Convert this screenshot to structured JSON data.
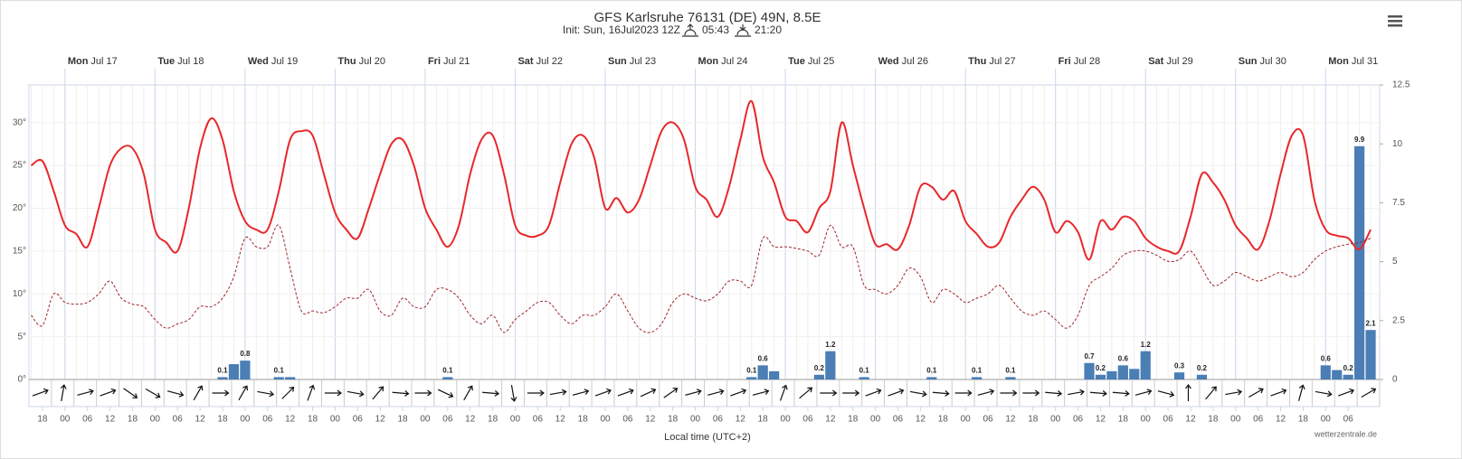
{
  "chart_data": {
    "type": "line",
    "title": "GFS Karlsruhe 76131 (DE) 49N, 8.5E",
    "subtitle": "Init: Sun, 16Jul2023 12Z",
    "sunrise": "05:43",
    "sunset": "21:20",
    "x_label": "Local time (UTC+2)",
    "credit": "wetterzentrale.de",
    "days": [
      {
        "weekday": "Mon",
        "date": "Jul 17"
      },
      {
        "weekday": "Tue",
        "date": "Jul 18"
      },
      {
        "weekday": "Wed",
        "date": "Jul 19"
      },
      {
        "weekday": "Thu",
        "date": "Jul 20"
      },
      {
        "weekday": "Fri",
        "date": "Jul 21"
      },
      {
        "weekday": "Sat",
        "date": "Jul 22"
      },
      {
        "weekday": "Sun",
        "date": "Jul 23"
      },
      {
        "weekday": "Mon",
        "date": "Jul 24"
      },
      {
        "weekday": "Tue",
        "date": "Jul 25"
      },
      {
        "weekday": "Wed",
        "date": "Jul 26"
      },
      {
        "weekday": "Thu",
        "date": "Jul 27"
      },
      {
        "weekday": "Fri",
        "date": "Jul 28"
      },
      {
        "weekday": "Sat",
        "date": "Jul 29"
      },
      {
        "weekday": "Sun",
        "date": "Jul 30"
      },
      {
        "weekday": "Mon",
        "date": "Jul 31"
      }
    ],
    "categories": [
      null,
      "18",
      null,
      "00",
      null,
      "06",
      null,
      "12",
      null,
      "18",
      null,
      "00",
      null,
      "06",
      null,
      "12",
      null,
      "18",
      null,
      "00",
      null,
      "06",
      null,
      "12",
      null,
      "18",
      null,
      "00",
      null,
      "06",
      null,
      "12",
      null,
      "18",
      null,
      "00",
      null,
      "06",
      null,
      "12",
      null,
      "18",
      null,
      "00",
      null,
      "06",
      null,
      "12",
      null,
      "18",
      null,
      "00",
      null,
      "06",
      null,
      "12",
      null,
      "18",
      null,
      "00",
      null,
      "06",
      null,
      "12",
      null,
      "18",
      null,
      "00",
      null,
      "06",
      null,
      "12",
      null,
      "18",
      null,
      "00",
      null,
      "06",
      null,
      "12",
      null,
      "18",
      null,
      "00",
      null,
      "06",
      null,
      "12",
      null,
      "18",
      null,
      "00",
      null,
      "06",
      null,
      "12",
      null,
      "18",
      null,
      "00",
      null,
      "06",
      null,
      "12",
      null,
      "18",
      null,
      "00",
      null,
      "06",
      null,
      "12",
      null,
      "18",
      null,
      "00",
      null,
      "06",
      null,
      null
    ],
    "ylim": [
      0,
      34.4
    ],
    "yticks": [
      {
        "value": 0,
        "label": "0°"
      },
      {
        "value": 5,
        "label": "5°"
      },
      {
        "value": 10,
        "label": "10°"
      },
      {
        "value": 15,
        "label": "15°"
      },
      {
        "value": 20,
        "label": "20°"
      },
      {
        "value": 25,
        "label": "25°"
      },
      {
        "value": 30,
        "label": "30°"
      }
    ],
    "y2lim": [
      0,
      12.5
    ],
    "y2ticks": [
      0,
      2.5,
      5,
      7.5,
      10,
      12.5
    ],
    "grid": true,
    "series": [
      {
        "type": "line",
        "color": "#e8282b",
        "values": [
          25,
          25.5,
          22,
          18,
          17,
          15.5,
          20,
          25,
          27,
          27,
          24,
          17.5,
          16,
          15,
          20,
          27,
          30.5,
          28,
          22,
          18.5,
          17.5,
          17.5,
          22,
          28,
          29,
          28.5,
          24,
          19.5,
          17.5,
          16.5,
          20,
          24,
          27.5,
          28,
          25,
          20,
          17.5,
          15.5,
          18,
          24,
          28,
          28.5,
          24,
          18,
          16.8,
          16.8,
          18,
          23,
          27.5,
          28.5,
          26,
          20,
          21.2,
          19.5,
          21,
          25,
          29,
          30,
          28,
          22.5,
          21,
          19,
          22.5,
          28,
          32.5,
          26,
          23,
          19,
          18.5,
          17.2,
          20,
          22,
          30,
          25,
          20,
          15.8,
          15.8,
          15.2,
          18,
          22.5,
          22.5,
          21,
          22,
          18.5,
          17,
          15.5,
          16,
          19,
          21,
          22.5,
          21,
          17.2,
          18.5,
          17.2,
          14,
          18.5,
          17.5,
          19,
          18.5,
          16.5,
          15.5,
          15,
          15,
          19,
          24,
          23,
          21,
          18,
          16.5,
          15.2,
          18.5,
          24,
          28.5,
          28.5,
          21,
          17.5,
          16.8,
          16.5,
          15.2,
          17.5
        ]
      },
      {
        "type": "line",
        "color": "#a0262a",
        "dashed": true,
        "values": [
          7.5,
          6.3,
          10,
          9,
          8.8,
          9,
          10,
          11.5,
          9.5,
          8.8,
          8.5,
          7,
          6,
          6.5,
          7,
          8.5,
          8.5,
          9.5,
          12,
          16.5,
          15.5,
          15.5,
          18,
          13,
          8,
          8,
          7.8,
          8.5,
          9.5,
          9.5,
          10.5,
          8,
          7.5,
          9.5,
          8.5,
          8.5,
          10.5,
          10.5,
          9.5,
          7.5,
          6.5,
          7.5,
          5.5,
          7,
          8,
          9,
          9,
          7.5,
          6.5,
          7.5,
          7.5,
          8.5,
          10,
          8,
          6,
          5.5,
          6.5,
          9,
          10,
          9.5,
          9.2,
          10,
          11.5,
          11.5,
          11,
          16.5,
          15.5,
          15.5,
          15.3,
          15,
          14.5,
          18,
          15.5,
          15.5,
          11,
          10.5,
          10,
          11,
          13,
          12,
          9,
          10.5,
          10,
          9,
          9.5,
          10,
          11,
          9.5,
          8,
          7.5,
          8,
          7,
          6,
          7.5,
          11,
          12,
          13,
          14.5,
          15,
          15,
          14.5,
          13.8,
          14,
          15,
          13,
          11,
          11.5,
          12.5,
          12,
          11.5,
          12,
          12.5,
          12,
          12.5,
          14,
          15,
          15.5,
          15.8,
          16,
          16.5
        ]
      },
      {
        "type": "bar",
        "axis": "y2",
        "color": "#4a7eb5",
        "values": [
          0,
          0,
          0,
          0,
          0,
          0,
          0,
          0,
          0,
          0,
          0,
          0,
          0,
          0,
          0,
          0,
          0,
          0.1,
          0.65,
          0.8,
          0,
          0,
          0.1,
          0.1,
          0,
          0,
          0,
          0,
          0,
          0,
          0,
          0,
          0,
          0,
          0,
          0,
          0,
          0.1,
          0,
          0,
          0,
          0,
          0,
          0,
          0,
          0,
          0,
          0,
          0,
          0,
          0,
          0,
          0,
          0,
          0,
          0,
          0,
          0,
          0,
          0,
          0,
          0,
          0,
          0,
          0.1,
          0.6,
          0.35,
          0,
          0,
          0,
          0.2,
          1.2,
          0,
          0,
          0.1,
          0,
          0,
          0,
          0,
          0,
          0.1,
          0,
          0,
          0,
          0.1,
          0,
          0,
          0.1,
          0,
          0,
          0,
          0,
          0,
          0,
          0.7,
          0.2,
          0.35,
          0.6,
          0.45,
          1.2,
          0,
          0,
          0.3,
          0,
          0.2,
          0,
          0,
          0,
          0,
          0,
          0,
          0,
          0,
          0,
          0,
          0.6,
          0.4,
          0.2,
          9.9,
          2.1
        ],
        "value_labels": [
          null,
          null,
          null,
          null,
          null,
          null,
          null,
          null,
          null,
          null,
          null,
          null,
          null,
          null,
          null,
          null,
          null,
          "0.1",
          null,
          "0.8",
          null,
          null,
          "0.1",
          null,
          null,
          null,
          null,
          null,
          null,
          null,
          null,
          null,
          null,
          null,
          null,
          null,
          null,
          "0.1",
          null,
          null,
          null,
          null,
          null,
          null,
          null,
          null,
          null,
          null,
          null,
          null,
          null,
          null,
          null,
          null,
          null,
          null,
          null,
          null,
          null,
          null,
          null,
          null,
          null,
          null,
          "0.1",
          "0.6",
          null,
          null,
          null,
          null,
          "0.2",
          "1.2",
          null,
          null,
          "0.1",
          null,
          null,
          null,
          null,
          null,
          "0.1",
          null,
          null,
          null,
          "0.1",
          null,
          null,
          "0.1",
          null,
          null,
          null,
          null,
          null,
          null,
          "0.7",
          "0.2",
          null,
          "0.6",
          null,
          "1.2",
          null,
          null,
          "0.3",
          null,
          "0.2",
          null,
          null,
          null,
          null,
          null,
          null,
          null,
          null,
          null,
          null,
          "0.6",
          null,
          "0.2",
          "9.9",
          "2.1"
        ]
      }
    ],
    "wind_direction": [
      20,
      80,
      15,
      20,
      -35,
      -30,
      -15,
      60,
      0,
      60,
      -10,
      45,
      70,
      0,
      -10,
      50,
      -5,
      0,
      -25,
      60,
      -5,
      -80,
      0,
      10,
      15,
      20,
      20,
      25,
      35,
      15,
      15,
      20,
      15,
      70,
      40,
      0,
      0,
      20,
      20,
      -10,
      -5,
      0,
      15,
      0,
      0,
      -5,
      10,
      -5,
      -5,
      15,
      -15,
      90,
      50,
      10,
      30,
      20,
      75,
      -10,
      20,
      30
    ]
  }
}
